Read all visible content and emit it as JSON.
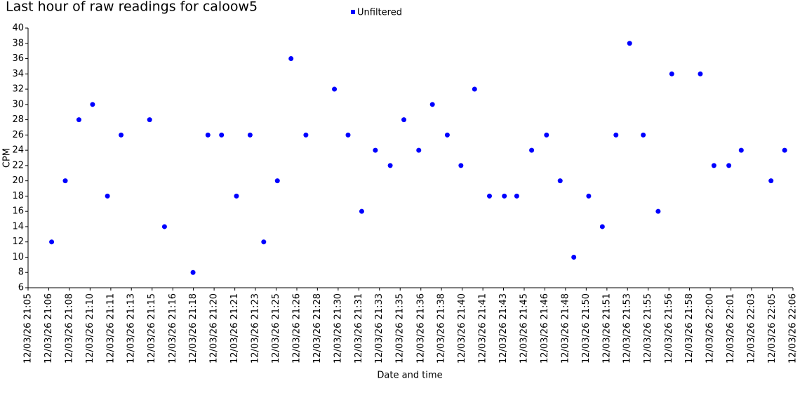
{
  "chart_data": {
    "type": "scatter",
    "title": "Last hour of raw readings for caloow5",
    "x_label": "Date and time",
    "y_label": "CPM",
    "legend": "top",
    "series": [
      {
        "name": "Unfiltered",
        "color": "#0000ff",
        "x": [
          1266.9,
          1268.0,
          1269.1,
          1270.2,
          1271.4,
          1272.5,
          1274.8,
          1276.0,
          1278.3,
          1279.5,
          1280.6,
          1281.8,
          1282.9,
          1284.0,
          1285.1,
          1286.2,
          1287.4,
          1289.7,
          1290.8,
          1291.9,
          1293.0,
          1294.2,
          1295.3,
          1296.5,
          1297.6,
          1298.8,
          1299.9,
          1301.0,
          1302.2,
          1303.4,
          1304.4,
          1305.6,
          1306.8,
          1307.9,
          1309.0,
          1310.2,
          1311.3,
          1312.4,
          1313.5,
          1314.6,
          1315.8,
          1316.9,
          1319.2,
          1320.3,
          1321.5,
          1322.5,
          1324.9,
          1326.0
        ],
        "values": [
          12,
          20,
          28,
          30,
          18,
          26,
          28,
          14,
          8,
          26,
          26,
          18,
          26,
          12,
          20,
          36,
          26,
          32,
          26,
          16,
          24,
          22,
          28,
          24,
          30,
          26,
          22,
          32,
          18,
          18,
          18,
          24,
          26,
          20,
          10,
          18,
          14,
          26,
          38,
          26,
          16,
          34,
          34,
          22,
          22,
          24,
          20,
          24
        ]
      }
    ],
    "xlim": [
      1265,
      1326.67
    ],
    "xticks": [
      {
        "value": 1265,
        "label": "12/03/26 21:05"
      },
      {
        "value": 1266.67,
        "label": "12/03/26 21:06"
      },
      {
        "value": 1268.33,
        "label": "12/03/26 21:08"
      },
      {
        "value": 1270,
        "label": "12/03/26 21:10"
      },
      {
        "value": 1271.67,
        "label": "12/03/26 21:11"
      },
      {
        "value": 1273.33,
        "label": "12/03/26 21:13"
      },
      {
        "value": 1275,
        "label": "12/03/26 21:15"
      },
      {
        "value": 1276.67,
        "label": "12/03/26 21:16"
      },
      {
        "value": 1278.33,
        "label": "12/03/26 21:18"
      },
      {
        "value": 1280,
        "label": "12/03/26 21:20"
      },
      {
        "value": 1281.67,
        "label": "12/03/26 21:21"
      },
      {
        "value": 1283.33,
        "label": "12/03/26 21:23"
      },
      {
        "value": 1285,
        "label": "12/03/26 21:25"
      },
      {
        "value": 1286.67,
        "label": "12/03/26 21:26"
      },
      {
        "value": 1288.33,
        "label": "12/03/26 21:28"
      },
      {
        "value": 1290,
        "label": "12/03/26 21:30"
      },
      {
        "value": 1291.67,
        "label": "12/03/26 21:31"
      },
      {
        "value": 1293.33,
        "label": "12/03/26 21:33"
      },
      {
        "value": 1295,
        "label": "12/03/26 21:35"
      },
      {
        "value": 1296.67,
        "label": "12/03/26 21:36"
      },
      {
        "value": 1298.33,
        "label": "12/03/26 21:38"
      },
      {
        "value": 1300,
        "label": "12/03/26 21:40"
      },
      {
        "value": 1301.67,
        "label": "12/03/26 21:41"
      },
      {
        "value": 1303.33,
        "label": "12/03/26 21:43"
      },
      {
        "value": 1305,
        "label": "12/03/26 21:45"
      },
      {
        "value": 1306.67,
        "label": "12/03/26 21:46"
      },
      {
        "value": 1308.33,
        "label": "12/03/26 21:48"
      },
      {
        "value": 1310,
        "label": "12/03/26 21:50"
      },
      {
        "value": 1311.67,
        "label": "12/03/26 21:51"
      },
      {
        "value": 1313.33,
        "label": "12/03/26 21:53"
      },
      {
        "value": 1315,
        "label": "12/03/26 21:55"
      },
      {
        "value": 1316.67,
        "label": "12/03/26 21:56"
      },
      {
        "value": 1318.33,
        "label": "12/03/26 21:58"
      },
      {
        "value": 1320,
        "label": "12/03/26 22:00"
      },
      {
        "value": 1321.67,
        "label": "12/03/26 22:01"
      },
      {
        "value": 1323.33,
        "label": "12/03/26 22:03"
      },
      {
        "value": 1325,
        "label": "12/03/26 22:05"
      },
      {
        "value": 1326.67,
        "label": "12/03/26 22:06"
      }
    ],
    "ylim": [
      6,
      40
    ],
    "yticks": [
      6,
      8,
      10,
      12,
      14,
      16,
      18,
      20,
      22,
      24,
      26,
      28,
      30,
      32,
      34,
      36,
      38,
      40
    ],
    "grid": false
  }
}
